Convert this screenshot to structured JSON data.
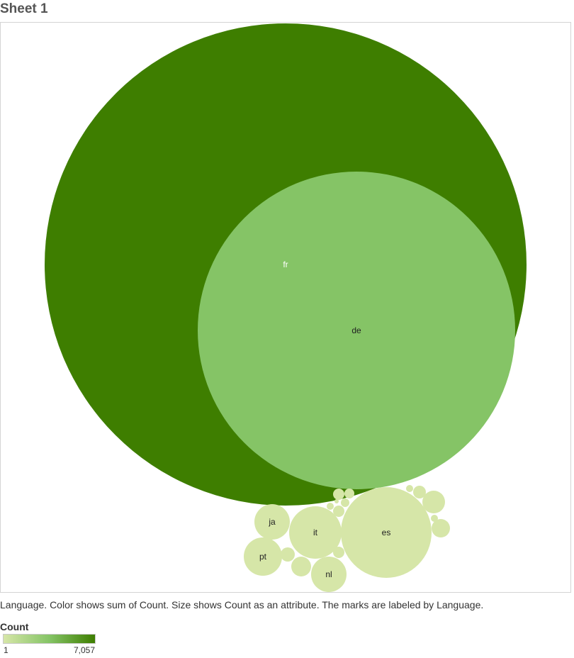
{
  "sheet": {
    "title": "Sheet 1"
  },
  "caption": "Language.  Color shows sum of Count.  Size shows Count as an attribute.  The marks are labeled by Language.",
  "legend": {
    "title": "Count",
    "min_label": "1",
    "max_label": "7,057",
    "color_low": "#d6e6a8",
    "color_high": "#3e7e00"
  },
  "colors": {
    "large": "#3e7e00",
    "medium": "#85c466",
    "small": "#d6e6a8"
  },
  "chart_data": {
    "type": "bubble",
    "title": "Sheet 1",
    "color_measure": "sum of Count",
    "size_measure": "Count",
    "color_range": [
      1,
      7057
    ],
    "bubbles": [
      {
        "label": "fr",
        "value": 7057
      },
      {
        "label": "de",
        "value": 3050
      },
      {
        "label": "es",
        "value": 250
      },
      {
        "label": "it",
        "value": 80
      },
      {
        "label": "nl",
        "value": 40
      },
      {
        "label": "ja",
        "value": 37
      },
      {
        "label": "pt",
        "value": 40
      },
      {
        "label": "",
        "value": 14
      },
      {
        "label": "",
        "value": 10
      },
      {
        "label": "",
        "value": 7
      },
      {
        "label": "",
        "value": 6
      },
      {
        "label": "",
        "value": 5
      },
      {
        "label": "",
        "value": 5
      },
      {
        "label": "",
        "value": 4
      },
      {
        "label": "",
        "value": 3
      },
      {
        "label": "",
        "value": 2
      },
      {
        "label": "",
        "value": 2
      },
      {
        "label": "",
        "value": 2
      },
      {
        "label": "",
        "value": 1
      },
      {
        "label": "",
        "value": 1
      },
      {
        "label": "",
        "value": 1
      }
    ]
  }
}
